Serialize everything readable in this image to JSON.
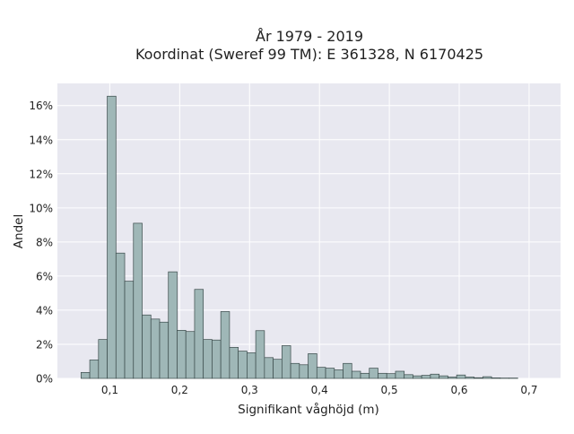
{
  "chart_data": {
    "type": "bar",
    "title": "År 1979 - 2019",
    "subtitle": "Koordinat (Sweref 99 TM): E 361328, N 6170425",
    "xlabel": "Signifikant våghöjd (m)",
    "ylabel": "Andel",
    "xlim": [
      0.025,
      0.745
    ],
    "ylim": [
      0,
      0.173
    ],
    "x_ticks": [
      {
        "value": 0.1,
        "label": "0,1"
      },
      {
        "value": 0.2,
        "label": "0,2"
      },
      {
        "value": 0.3,
        "label": "0,3"
      },
      {
        "value": 0.4,
        "label": "0,4"
      },
      {
        "value": 0.5,
        "label": "0,5"
      },
      {
        "value": 0.6,
        "label": "0,6"
      },
      {
        "value": 0.7,
        "label": "0,7"
      }
    ],
    "y_ticks": [
      {
        "value": 0,
        "label": "0%"
      },
      {
        "value": 0.02,
        "label": "2%"
      },
      {
        "value": 0.04,
        "label": "4%"
      },
      {
        "value": 0.06,
        "label": "6%"
      },
      {
        "value": 0.08,
        "label": "8%"
      },
      {
        "value": 0.1,
        "label": "10%"
      },
      {
        "value": 0.12,
        "label": "12%"
      },
      {
        "value": 0.14,
        "label": "14%"
      },
      {
        "value": 0.16,
        "label": "16%"
      }
    ],
    "bin_width": 0.0125,
    "bin_start": 0.0588,
    "values": [
      0.0035,
      0.0108,
      0.0228,
      0.1655,
      0.0735,
      0.057,
      0.091,
      0.0372,
      0.0348,
      0.033,
      0.0625,
      0.0282,
      0.0275,
      0.0522,
      0.0228,
      0.0225,
      0.0392,
      0.0182,
      0.016,
      0.015,
      0.028,
      0.0122,
      0.0112,
      0.0192,
      0.0088,
      0.008,
      0.0145,
      0.0065,
      0.006,
      0.005,
      0.0088,
      0.0042,
      0.003,
      0.006,
      0.003,
      0.0028,
      0.0042,
      0.0022,
      0.0015,
      0.0018,
      0.0025,
      0.0015,
      0.0008,
      0.002,
      0.0008,
      0.0004,
      0.001,
      0.0003,
      0.0002,
      0.0002
    ],
    "grid": true,
    "colors": {
      "bar_fill": "#9fb7b7",
      "bar_edge": "#3a4a4a",
      "plot_bg": "#e8e8f0",
      "grid": "#ffffff"
    }
  }
}
